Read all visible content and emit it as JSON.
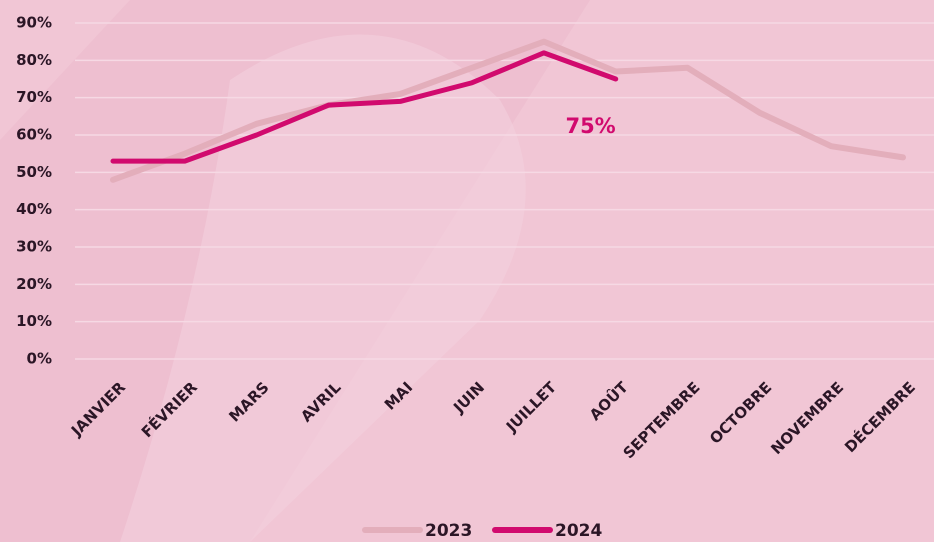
{
  "chart_data": {
    "type": "line",
    "categories": [
      "JANVIER",
      "FÉVRIER",
      "MARS",
      "AVRIL",
      "MAI",
      "JUIN",
      "JUILLET",
      "AOÛT",
      "SEPTEMBRE",
      "OCTOBRE",
      "NOVEMBRE",
      "DÉCEMBRE"
    ],
    "series": [
      {
        "name": "2023",
        "color": "#e3aebb",
        "values": [
          48,
          55,
          63,
          68,
          71,
          78,
          85,
          77,
          78,
          66,
          57,
          54
        ]
      },
      {
        "name": "2024",
        "color": "#d10a6e",
        "values": [
          53,
          53,
          60,
          68,
          69,
          74,
          82,
          75,
          null,
          null,
          null,
          null
        ],
        "value_labels": [
          null,
          null,
          null,
          null,
          null,
          null,
          null,
          "75%",
          null,
          null,
          null,
          null
        ]
      }
    ],
    "ylim": [
      0,
      90
    ],
    "yticks": [
      {
        "value": 0,
        "label": "0%"
      },
      {
        "value": 10,
        "label": "10%"
      },
      {
        "value": 20,
        "label": "20%"
      },
      {
        "value": 30,
        "label": "30%"
      },
      {
        "value": 40,
        "label": "40%"
      },
      {
        "value": 50,
        "label": "50%"
      },
      {
        "value": 60,
        "label": "60%"
      },
      {
        "value": 70,
        "label": "70%"
      },
      {
        "value": 80,
        "label": "80%"
      },
      {
        "value": 90,
        "label": "90%"
      }
    ],
    "grid": true
  }
}
